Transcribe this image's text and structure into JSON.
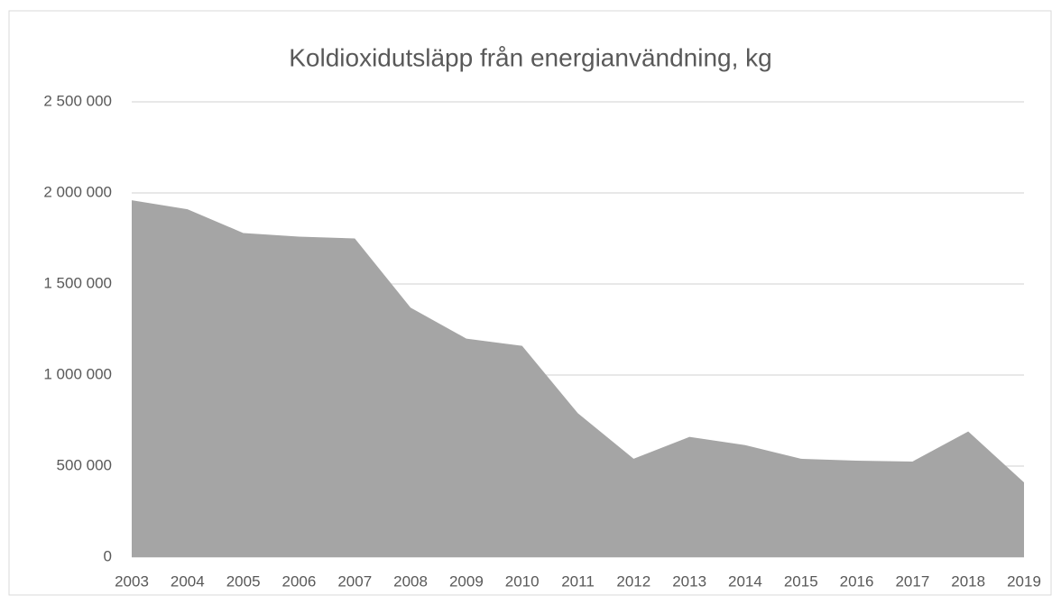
{
  "chart_data": {
    "type": "area",
    "title": "Koldioxidutsläpp från energianvändning, kg",
    "categories": [
      "2003",
      "2004",
      "2005",
      "2006",
      "2007",
      "2008",
      "2009",
      "2010",
      "2011",
      "2012",
      "2013",
      "2014",
      "2015",
      "2016",
      "2017",
      "2018",
      "2019"
    ],
    "values": [
      1960000,
      1910000,
      1780000,
      1760000,
      1750000,
      1370000,
      1200000,
      1160000,
      790000,
      540000,
      660000,
      615000,
      540000,
      530000,
      525000,
      690000,
      410000
    ],
    "color": "#a5a5a5",
    "ylim": [
      0,
      2500000
    ],
    "yticks": [
      0,
      {
        "value": 500000,
        "label": "500 000"
      },
      {
        "value": 1000000,
        "label": "1 000 000"
      },
      {
        "value": 1500000,
        "label": "1 500 000"
      },
      {
        "value": 2000000,
        "label": "2 000 000"
      },
      {
        "value": 2500000,
        "label": "2 500 000"
      }
    ],
    "grid": true
  }
}
